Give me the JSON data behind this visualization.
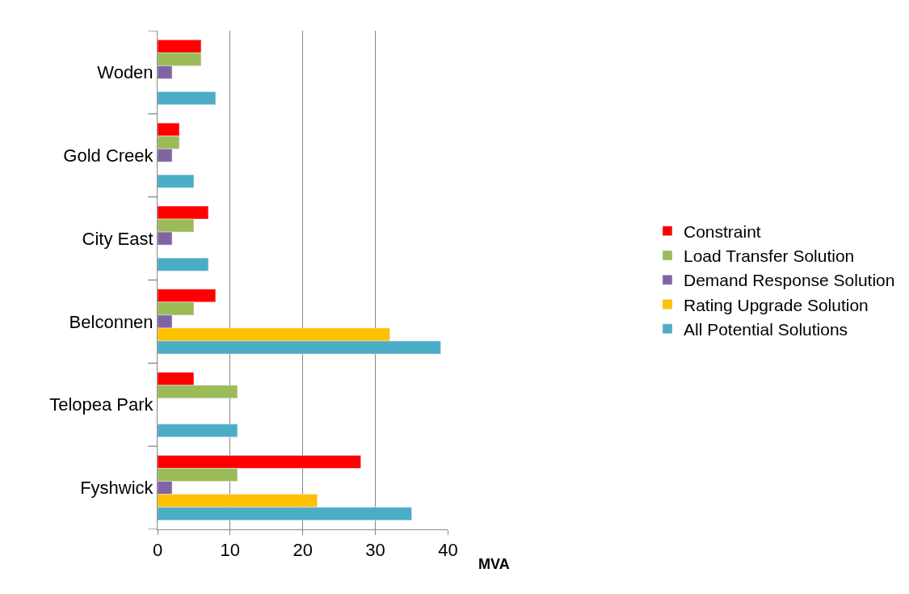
{
  "chart_data": {
    "type": "bar",
    "orientation": "horizontal",
    "xlabel": "MVA",
    "categories": [
      "Woden",
      "Gold Creek",
      "City East",
      "Belconnen",
      "Telopea Park",
      "Fyshwick"
    ],
    "series": [
      {
        "name": "Constraint",
        "color": "#ff0000",
        "values": [
          6,
          3,
          7,
          8,
          5,
          28
        ]
      },
      {
        "name": "Load Transfer Solution",
        "color": "#9bbb59",
        "values": [
          6,
          3,
          5,
          5,
          11,
          11
        ]
      },
      {
        "name": "Demand Response Solution",
        "color": "#8064a2",
        "values": [
          2,
          2,
          2,
          2,
          null,
          2
        ]
      },
      {
        "name": "Rating Upgrade Solution",
        "color": "#ffc000",
        "values": [
          null,
          null,
          null,
          32,
          null,
          22
        ]
      },
      {
        "name": "All Potential Solutions",
        "color": "#4bacc6",
        "values": [
          8,
          5,
          7,
          39,
          11,
          35
        ]
      }
    ],
    "xlim": [
      0,
      40
    ],
    "xticks": [
      0,
      10,
      20,
      30,
      40
    ],
    "grid": "x",
    "legend": "right"
  }
}
